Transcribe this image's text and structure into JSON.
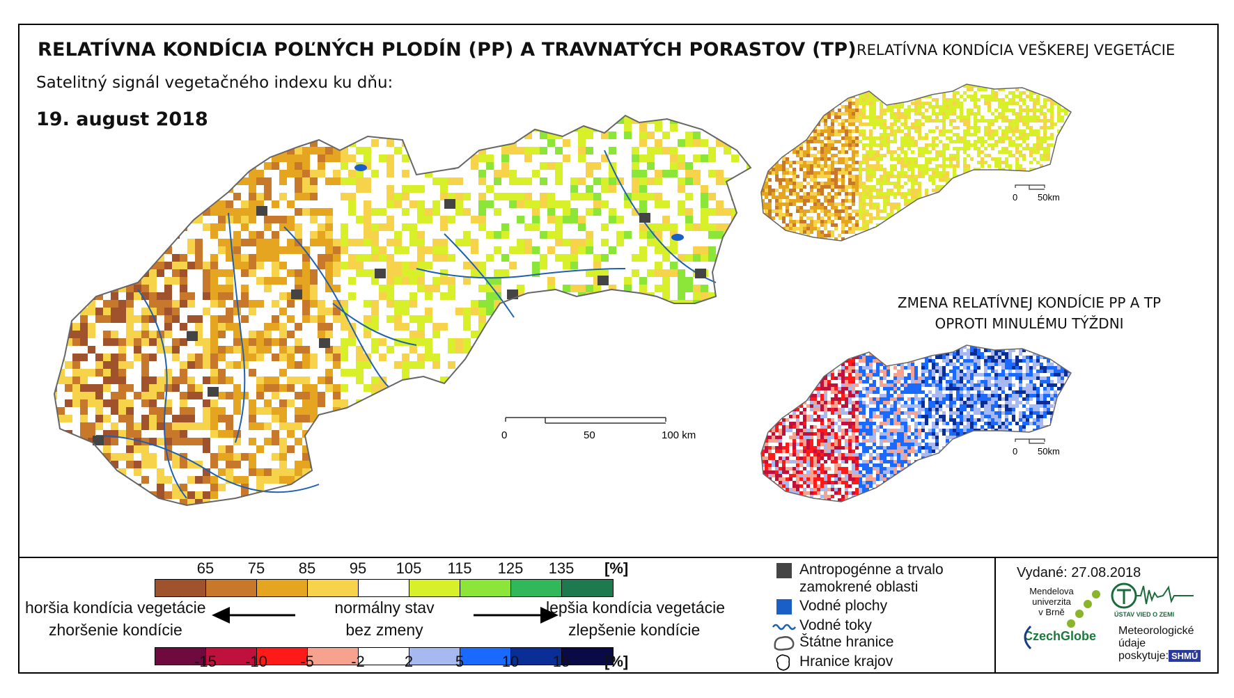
{
  "header": {
    "title": "RELATÍVNA KONDÍCIA POĽNÝCH PLODÍN (PP) A TRAVNATÝCH PORASTOV (TP)",
    "right_title": "RELATÍVNA KONDÍCIA VEŠKEREJ VEGETÁCIE",
    "subtitle": "Satelitný signál vegetačného indexu ku dňu:",
    "date": "19. august 2018"
  },
  "change_map": {
    "title_line1": "ZMENA RELATÍVNEJ KONDÍCIE PP A TP",
    "title_line2": "OPROTI MINULÉMU TÝŽDNI"
  },
  "scale_main": {
    "label_0": "0",
    "label_mid": "50",
    "label_end": "100 km"
  },
  "scale_small": {
    "label_0": "0",
    "label_end": "50km"
  },
  "legend_condition": {
    "ticks": [
      "65",
      "75",
      "85",
      "95",
      "105",
      "115",
      "125",
      "135"
    ],
    "unit": "[%]",
    "colors": [
      "#a0522d",
      "#c8782a",
      "#e6a520",
      "#f6d34a",
      "#ffffff",
      "#d8f02a",
      "#8ce63a",
      "#30b85a",
      "#1c7a4e"
    ]
  },
  "legend_change": {
    "ticks": [
      "-15",
      "-10",
      "-5",
      "-2",
      "2",
      "5",
      "10",
      "15"
    ],
    "unit": "[%]",
    "colors": [
      "#6e0a3e",
      "#c0103c",
      "#ff1a1a",
      "#f7a28e",
      "#ffffff",
      "#a8b8f0",
      "#1a6aff",
      "#0a2e96",
      "#0a0a46"
    ]
  },
  "legend_text": {
    "worse_1": "horšia kondícia vegetácie",
    "worse_2": "zhoršenie kondície",
    "normal_1": "normálny stav",
    "normal_2": "bez zmeny",
    "better_1": "lepšia kondícia vegetácie",
    "better_2": "zlepšenie kondície"
  },
  "symbol_legend": {
    "anthropogenic": "Antropogénne a trvalo zamokrené oblasti",
    "anthropogenic_l1": "Antropogénne a trvalo",
    "anthropogenic_l2": "zamokrené oblasti",
    "water": "Vodné plochy",
    "rivers": "Vodné toky",
    "state_border": "Štátne hranice",
    "regions": "Hranice krajov"
  },
  "footer": {
    "issued": "Vydané: 27.08.2018",
    "mendel_1": "Mendelova",
    "mendel_2": "univerzita",
    "mendel_3": "v Brně",
    "czechglobe": "CzechGlobe",
    "ustav": "ÚSTAV VIED O ZEMI",
    "meteo_1": "Meteorologické",
    "meteo_2": "údaje",
    "meteo_3": "poskytuje:",
    "shmu": "SHMÚ"
  },
  "colors": {
    "river": "#1f5fb0",
    "anthropogenic": "#444444",
    "water": "#1a5fc8",
    "border": "#555555"
  }
}
